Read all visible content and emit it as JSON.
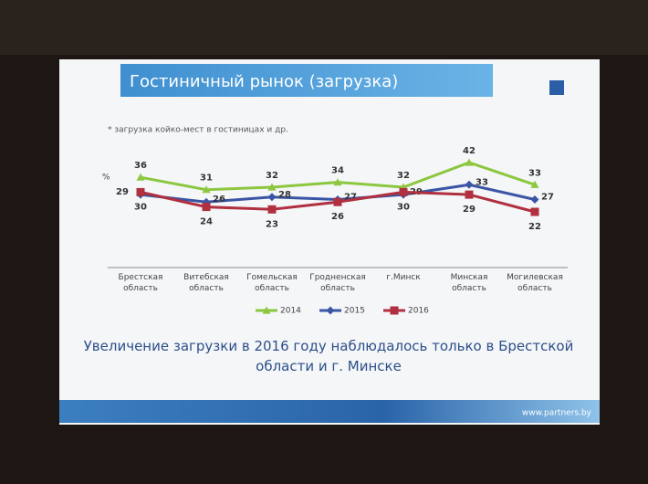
{
  "chart_data": {
    "type": "line",
    "title": "Гостиничный рынок (загрузка)",
    "subtitle": "* загрузка койко-мест в гостиницах и др.",
    "y_label": "%",
    "categories": [
      "Брестская область",
      "Витебская область",
      "Гомельская область",
      "Гродненская область",
      "г.Минск",
      "Минская область",
      "Могилевская область"
    ],
    "series": [
      {
        "name": "2014",
        "color": "#8dc63f",
        "marker": "triangle",
        "values": [
          36,
          31,
          32,
          34,
          32,
          42,
          33
        ]
      },
      {
        "name": "2015",
        "color": "#3a55a4",
        "marker": "diamond",
        "values": [
          29,
          26,
          28,
          27,
          29,
          33,
          27
        ]
      },
      {
        "name": "2016",
        "color": "#b0303f",
        "marker": "square",
        "values": [
          30,
          24,
          23,
          26,
          30,
          29,
          22
        ]
      }
    ],
    "legend": "bottom",
    "annotation": "Увеличение загрузки в 2016 году наблюдалось только в Брестской области и г. Минске",
    "source": "www.partners.by"
  }
}
